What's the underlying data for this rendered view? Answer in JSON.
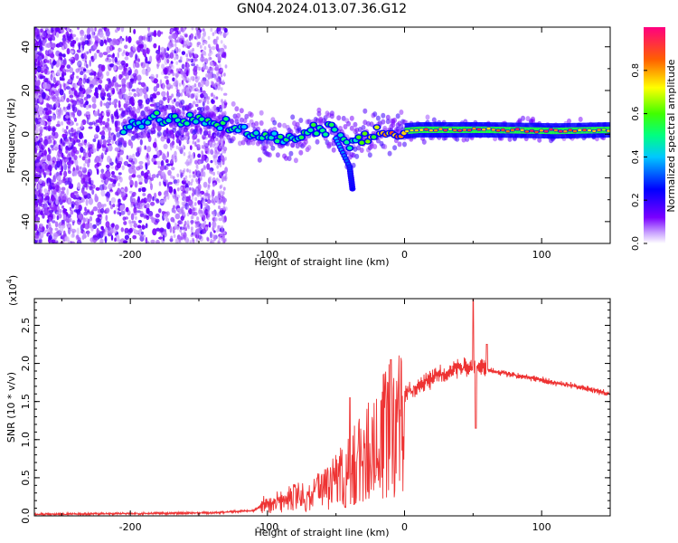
{
  "title": "GN04.2024.013.07.36.G12",
  "chart_data": [
    {
      "type": "heatmap",
      "xlabel": "Height of straight line (km)",
      "ylabel": "Frequency (Hz)",
      "xlim": [
        -270,
        150
      ],
      "ylim": [
        -50,
        49
      ],
      "xticks": [
        -200,
        -100,
        0,
        100
      ],
      "yticks": [
        -40,
        -20,
        0,
        20,
        40
      ],
      "colorbar": {
        "label": "Normalized spectral amplitude",
        "range": [
          0,
          1
        ],
        "ticks": [
          "0.0",
          "0.2",
          "0.4",
          "0.6",
          "0.8"
        ],
        "colormap": [
          "#ffffff",
          "#7a00ff",
          "#0000ff",
          "#00c8ff",
          "#00ff80",
          "#ffff00",
          "#ff6000",
          "#ff0080"
        ]
      },
      "ridge": {
        "description_points": [
          {
            "x": -205,
            "y": 4,
            "v": 0.45
          },
          {
            "x": -180,
            "y": 7,
            "v": 0.5
          },
          {
            "x": -150,
            "y": 6,
            "v": 0.5
          },
          {
            "x": -125,
            "y": 4,
            "v": 0.5
          },
          {
            "x": -100,
            "y": -2,
            "v": 0.5
          },
          {
            "x": -80,
            "y": -3,
            "v": 0.5
          },
          {
            "x": -65,
            "y": 3,
            "v": 0.55
          },
          {
            "x": -50,
            "y": 2,
            "v": 0.6
          },
          {
            "x": -40,
            "y": -6,
            "v": 0.45
          },
          {
            "x": -30,
            "y": -1,
            "v": 0.6
          },
          {
            "x": -10,
            "y": 1,
            "v": 0.85
          },
          {
            "x": 10,
            "y": 2,
            "v": 0.8
          },
          {
            "x": 60,
            "y": 2,
            "v": 0.9
          },
          {
            "x": 110,
            "y": 1.5,
            "v": 0.9
          },
          {
            "x": 150,
            "y": 2,
            "v": 0.7
          }
        ],
        "branch": [
          {
            "x": -50,
            "y": -2,
            "v": 0.4
          },
          {
            "x": -40,
            "y": -15,
            "v": 0.3
          },
          {
            "x": -38,
            "y": -25,
            "v": 0.25
          }
        ]
      }
    },
    {
      "type": "line",
      "xlabel": "Height of straight line (km)",
      "ylabel": "SNR (10 * v/v)",
      "scale_label": "(x10",
      "scale_exp": "4",
      "scale_close": ")",
      "xlim": [
        -270,
        150
      ],
      "ylim": [
        0,
        2.85
      ],
      "xticks": [
        -200,
        -100,
        0,
        100
      ],
      "yticks": [
        "0.0",
        "0.5",
        "1.0",
        "1.5",
        "2.0",
        "2.5"
      ],
      "line_color": "#ee3333",
      "envelope": [
        {
          "x": -270,
          "y": 0.02
        },
        {
          "x": -200,
          "y": 0.03
        },
        {
          "x": -140,
          "y": 0.04
        },
        {
          "x": -110,
          "y": 0.07
        },
        {
          "x": -100,
          "y": 0.18
        },
        {
          "x": -80,
          "y": 0.3
        },
        {
          "x": -60,
          "y": 0.4
        },
        {
          "x": -45,
          "y": 0.65
        },
        {
          "x": -35,
          "y": 0.9
        },
        {
          "x": -25,
          "y": 1.1
        },
        {
          "x": -15,
          "y": 1.3
        },
        {
          "x": 0,
          "y": 1.6
        },
        {
          "x": 20,
          "y": 1.8
        },
        {
          "x": 40,
          "y": 1.95
        },
        {
          "x": 55,
          "y": 1.95
        },
        {
          "x": 70,
          "y": 1.88
        },
        {
          "x": 100,
          "y": 1.78
        },
        {
          "x": 130,
          "y": 1.68
        },
        {
          "x": 150,
          "y": 1.6
        }
      ],
      "spikes": [
        {
          "x": 50,
          "y": 2.85
        },
        {
          "x": 52,
          "y": 1.15
        },
        {
          "x": 60,
          "y": 2.25
        },
        {
          "x": -10,
          "y": 2.05
        },
        {
          "x": -40,
          "y": 1.55
        }
      ]
    }
  ]
}
